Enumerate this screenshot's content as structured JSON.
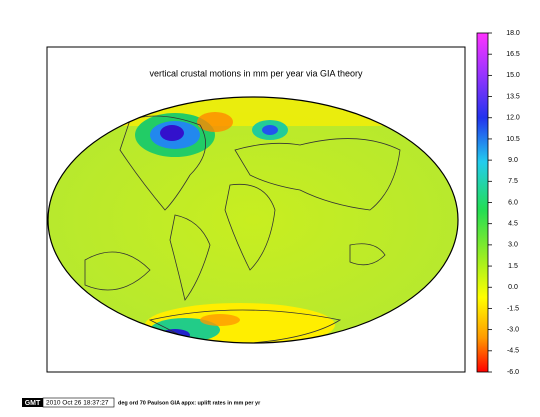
{
  "title": "vertical crustal motions in mm per year via GIA theory",
  "colorbar": {
    "lim": [
      -6,
      18
    ],
    "ticks": [
      {
        "value": 18,
        "label": "18.0"
      },
      {
        "value": 16.5,
        "label": "16.5"
      },
      {
        "value": 15,
        "label": "15.0"
      },
      {
        "value": 13.5,
        "label": "13.5"
      },
      {
        "value": 12,
        "label": "12.0"
      },
      {
        "value": 10.5,
        "label": "10.5"
      },
      {
        "value": 9,
        "label": "9.0"
      },
      {
        "value": 7.5,
        "label": "7.5"
      },
      {
        "value": 6,
        "label": "6.0"
      },
      {
        "value": 4.5,
        "label": "4.5"
      },
      {
        "value": 3,
        "label": "3.0"
      },
      {
        "value": 1.5,
        "label": "1.5"
      },
      {
        "value": 0,
        "label": "0.0"
      },
      {
        "value": -1.5,
        "label": "-1.5"
      },
      {
        "value": -3,
        "label": "-3.0"
      },
      {
        "value": -4.5,
        "label": "-4.5"
      },
      {
        "value": -6,
        "label": "-6.0"
      }
    ]
  },
  "footer": {
    "logo": "GMT",
    "timestamp": "2010 Oct 26 18:37:27",
    "caption": "deg ord 70 Paulson GIA appx: uplift rates in mm per yr"
  }
}
